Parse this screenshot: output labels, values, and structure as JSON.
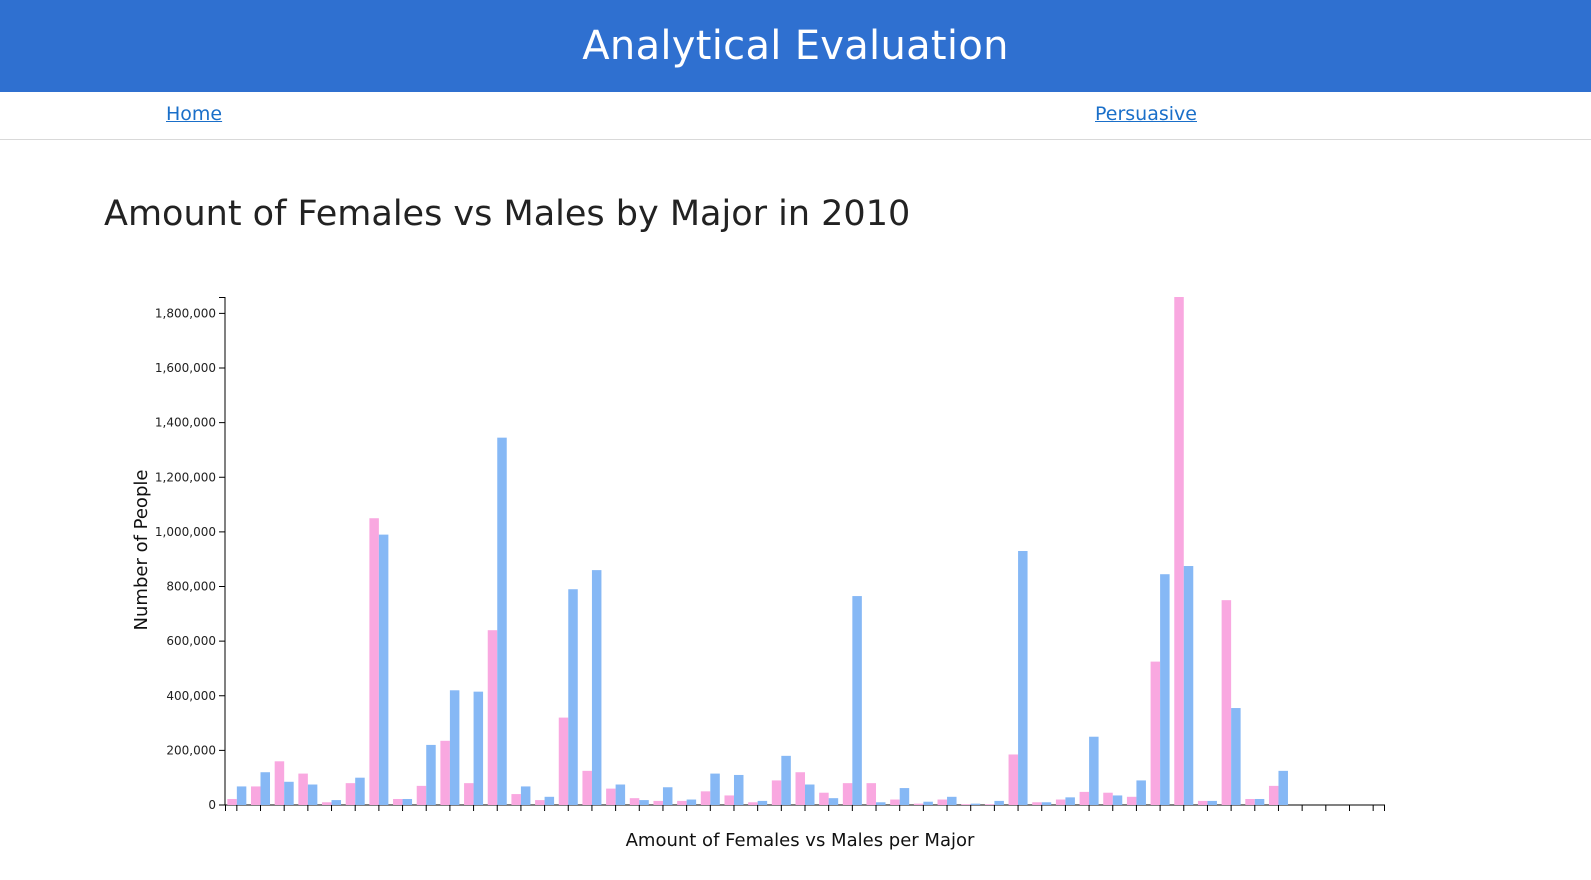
{
  "header": {
    "title": "Analytical Evaluation"
  },
  "nav": {
    "home_label": "Home",
    "persuasive_label": "Persuasive"
  },
  "page": {
    "title": "Amount of Females vs Males by Major in 2010"
  },
  "colors": {
    "female": "#f9a8e0",
    "male": "#86b8f5",
    "header_bg": "#2f70d0",
    "link": "#1a6fc9"
  },
  "chart_data": {
    "type": "bar",
    "xlabel": "Amount of Females vs Males per Major",
    "ylabel": "Number of People",
    "ylim": [
      0,
      1860000
    ],
    "yticks": [
      0,
      200000,
      400000,
      600000,
      800000,
      1000000,
      1200000,
      1400000,
      1600000,
      1800000
    ],
    "ytick_labels": [
      "0",
      "200,000",
      "400,000",
      "600,000",
      "800,000",
      "1,000,000",
      "1,200,000",
      "1,400,000",
      "1,600,000",
      "1,800,000"
    ],
    "grid": false,
    "categories_count": 49,
    "series": [
      {
        "color": "#f9a8e0",
        "values": [
          22000,
          68000,
          160000,
          115000,
          10000,
          80000,
          1050000,
          22000,
          70000,
          235000,
          80000,
          640000,
          40000,
          18000,
          320000,
          125000,
          60000,
          25000,
          15000,
          15000,
          50000,
          35000,
          10000,
          90000,
          120000,
          45000,
          80000,
          80000,
          20000,
          5000,
          20000,
          3000,
          3000,
          185000,
          10000,
          20000,
          48000,
          45000,
          30000,
          525000,
          1860000,
          15000,
          750000,
          22000,
          70000,
          0,
          0,
          0,
          0
        ]
      },
      {
        "color": "#86b8f5",
        "values": [
          68000,
          120000,
          85000,
          75000,
          18000,
          100000,
          990000,
          22000,
          220000,
          420000,
          415000,
          1345000,
          68000,
          30000,
          790000,
          860000,
          75000,
          18000,
          65000,
          20000,
          115000,
          110000,
          15000,
          180000,
          75000,
          25000,
          765000,
          10000,
          62000,
          12000,
          30000,
          5000,
          15000,
          930000,
          10000,
          28000,
          250000,
          35000,
          90000,
          845000,
          875000,
          15000,
          355000,
          22000,
          125000,
          0,
          0,
          0,
          0
        ]
      }
    ]
  }
}
